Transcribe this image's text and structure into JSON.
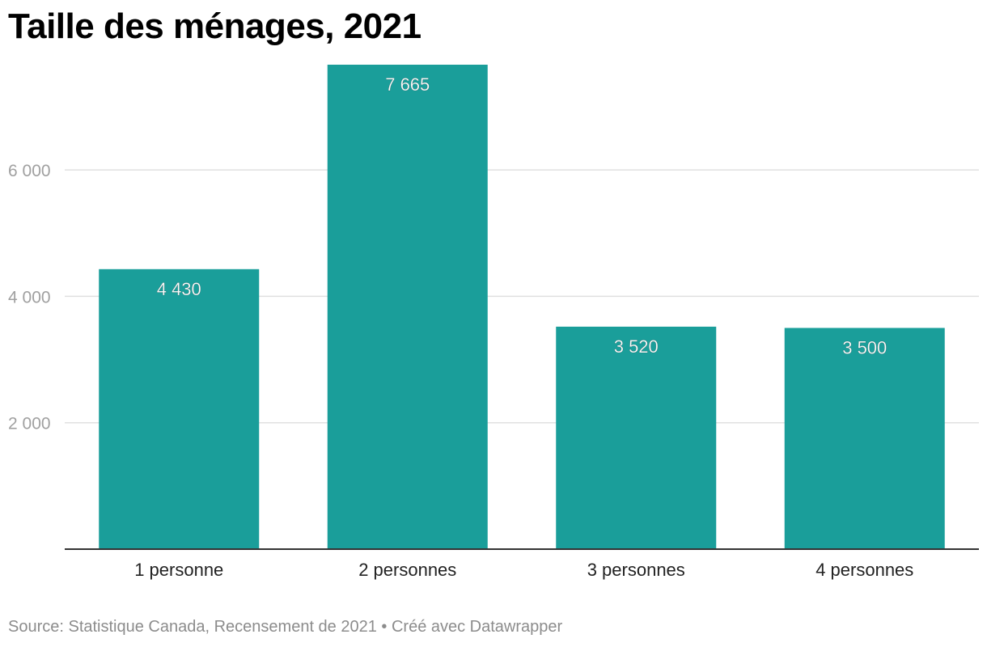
{
  "chart_data": {
    "type": "bar",
    "title": "Taille des ménages, 2021",
    "categories": [
      "1 personne",
      "2 personnes",
      "3 personnes",
      "4 personnes"
    ],
    "values": [
      4430,
      7665,
      3520,
      3500
    ],
    "value_labels": [
      "4 430",
      "7 665",
      "3 520",
      "3 500"
    ],
    "yticks": [
      2000,
      4000,
      6000
    ],
    "ytick_labels": [
      "2 000",
      "4 000",
      "6 000"
    ],
    "ylim": [
      0,
      7665
    ],
    "grid": true,
    "xlabel": "",
    "ylabel": "",
    "colors": {
      "bar": "#1a9e9a",
      "grid": "#e0e0e0",
      "axis": "#333333",
      "tick_text": "#a0a0a0",
      "label_text": "#ffffff"
    }
  },
  "footer": {
    "text": "Source: Statistique Canada, Recensement de 2021 • Créé avec Datawrapper"
  }
}
